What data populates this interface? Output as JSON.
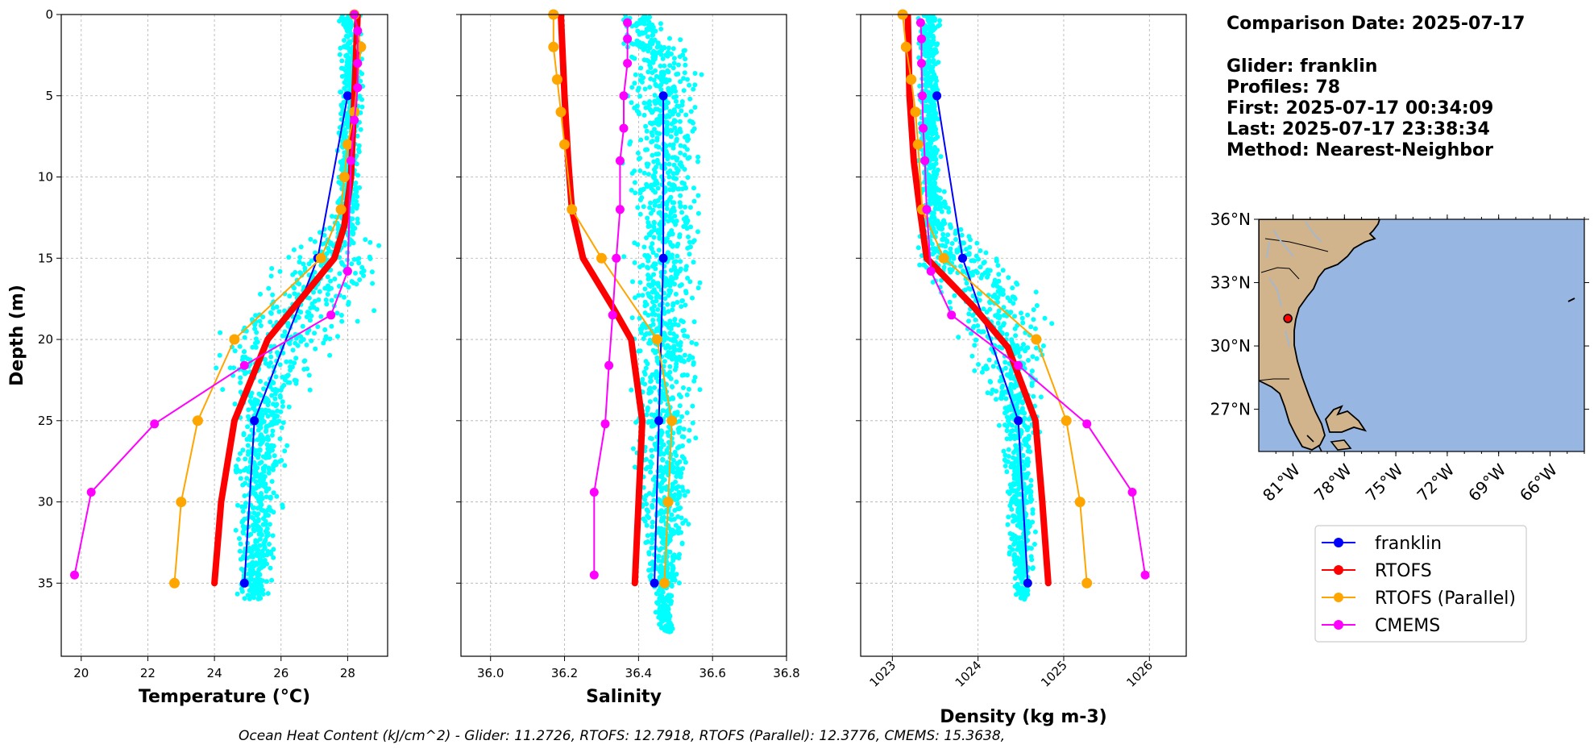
{
  "info": {
    "comparison_date": "Comparison Date: 2025-07-17",
    "glider": "Glider: franklin",
    "profiles": "Profiles: 78",
    "first": "First: 2025-07-17 00:34:09",
    "last": "Last: 2025-07-17 23:38:34",
    "method": "Method: Nearest-Neighbor"
  },
  "footer": "Ocean Heat Content (kJ/cm^2) - Glider: 11.2726,  RTOFS: 12.7918,  RTOFS (Parallel): 12.3776,  CMEMS: 15.3638,",
  "colors": {
    "franklin": "#0000ff",
    "rtofs": "#ff0000",
    "rtofs_parallel": "#ffa500",
    "cmems": "#ff00ff",
    "glider_scatter": "#00ffff",
    "land": "#d2b48c",
    "ocean": "#97b6e1"
  },
  "chart_data": [
    {
      "type": "line",
      "xlabel": "Temperature (°C)",
      "ylabel": "Depth (m)",
      "xlim": [
        19.4,
        29.2
      ],
      "ylim": [
        39.5,
        0
      ],
      "xticks": [
        20,
        22,
        24,
        26,
        28
      ],
      "yticks": [
        0,
        5,
        10,
        15,
        20,
        25,
        30,
        35
      ],
      "grid": true,
      "scatter": {
        "name": "franklin profiles",
        "x_center": [
          28.1,
          28.1,
          28.0,
          27.9,
          27.6,
          27.0,
          26.3,
          25.6,
          25.4,
          25.3,
          25.2
        ],
        "depth": [
          0,
          5,
          10,
          13,
          15,
          17,
          19,
          22,
          25,
          30,
          36
        ],
        "spread": [
          0.3,
          0.3,
          0.3,
          0.5,
          1.6,
          1.8,
          1.8,
          1.4,
          0.7,
          0.7,
          0.4
        ]
      },
      "series": [
        {
          "name": "franklin",
          "x": [
            28.0,
            27.1,
            25.2,
            24.9
          ],
          "depth": [
            5,
            15,
            25,
            35
          ]
        },
        {
          "name": "RTOFS",
          "x": [
            28.3,
            28.2,
            28.1,
            27.9,
            27.6,
            25.6,
            24.6,
            24.2,
            24.0
          ],
          "depth": [
            0,
            5,
            10,
            13,
            15,
            20,
            25,
            30,
            35
          ]
        },
        {
          "name": "RTOFS (Parallel)",
          "x": [
            28.2,
            28.4,
            28.2,
            28.0,
            27.9,
            27.8,
            27.2,
            24.6,
            23.5,
            23.0,
            22.8
          ],
          "depth": [
            0,
            2,
            6,
            8,
            10,
            12,
            15,
            20,
            25,
            30,
            35
          ]
        },
        {
          "name": "CMEMS",
          "x": [
            28.2,
            28.3,
            28.3,
            28.3,
            28.2,
            28.1,
            28.0,
            27.5,
            24.9,
            22.2,
            20.3,
            19.8
          ],
          "depth": [
            0,
            1,
            3,
            4.5,
            6.5,
            9,
            15.8,
            18.5,
            21.6,
            25.2,
            29.4,
            34.5
          ]
        }
      ]
    },
    {
      "type": "line",
      "xlabel": "Salinity",
      "xlim": [
        35.92,
        36.8
      ],
      "ylim": [
        39.5,
        0
      ],
      "xticks": [
        36.0,
        36.2,
        36.4,
        36.6,
        36.8
      ],
      "yticks": [
        0,
        5,
        10,
        15,
        20,
        25,
        30,
        35
      ],
      "grid": true,
      "scatter": {
        "name": "franklin profiles",
        "x_center": [
          36.4,
          36.47,
          36.47,
          36.47,
          36.47,
          36.47,
          36.47,
          36.47,
          36.47,
          36.47,
          36.48
        ],
        "depth": [
          0,
          3,
          5,
          10,
          15,
          20,
          25,
          30,
          33,
          36,
          38
        ],
        "spread": [
          0.05,
          0.1,
          0.1,
          0.1,
          0.09,
          0.08,
          0.08,
          0.07,
          0.05,
          0.03,
          0.02
        ]
      },
      "series": [
        {
          "name": "franklin",
          "x": [
            36.467,
            36.467,
            36.455,
            36.443
          ],
          "depth": [
            5,
            15,
            25,
            35
          ]
        },
        {
          "name": "RTOFS",
          "x": [
            36.19,
            36.2,
            36.21,
            36.22,
            36.25,
            36.33,
            36.38,
            36.41,
            36.4,
            36.39
          ],
          "depth": [
            0,
            5,
            9,
            12,
            15,
            18,
            20,
            25,
            30,
            35
          ]
        },
        {
          "name": "RTOFS (Parallel)",
          "x": [
            36.17,
            36.17,
            36.18,
            36.19,
            36.2,
            36.22,
            36.3,
            36.45,
            36.49,
            36.48,
            36.47
          ],
          "depth": [
            0,
            2,
            4,
            6,
            8,
            12,
            15,
            20,
            25,
            30,
            35
          ]
        },
        {
          "name": "CMEMS",
          "x": [
            36.37,
            36.37,
            36.37,
            36.36,
            36.36,
            36.35,
            36.35,
            36.34,
            36.33,
            36.32,
            36.31,
            36.28,
            36.28
          ],
          "depth": [
            0.5,
            1.5,
            3,
            5,
            7,
            9,
            12,
            15,
            18.5,
            21.6,
            25.2,
            29.4,
            34.5
          ]
        }
      ]
    },
    {
      "type": "line",
      "xlabel": "Density (kg m-3)",
      "xlim": [
        1022.63,
        1026.43
      ],
      "ylim": [
        39.5,
        0
      ],
      "xticks": [
        1023,
        1024,
        1025,
        1026
      ],
      "yticks": [
        0,
        5,
        10,
        15,
        20,
        25,
        30,
        35
      ],
      "grid": true,
      "scatter": {
        "name": "franklin profiles",
        "x_center": [
          1023.42,
          1023.42,
          1023.45,
          1023.5,
          1023.8,
          1024.05,
          1024.25,
          1024.38,
          1024.47,
          1024.5,
          1024.52
        ],
        "depth": [
          0,
          5,
          10,
          13,
          15,
          17,
          19,
          22,
          25,
          30,
          36
        ],
        "spread": [
          0.12,
          0.12,
          0.12,
          0.2,
          0.55,
          0.6,
          0.55,
          0.4,
          0.2,
          0.15,
          0.1
        ]
      },
      "series": [
        {
          "name": "franklin",
          "x": [
            1023.52,
            1023.82,
            1024.47,
            1024.58
          ],
          "depth": [
            5,
            15,
            25,
            35
          ]
        },
        {
          "name": "RTOFS",
          "x": [
            1023.18,
            1023.2,
            1023.25,
            1023.32,
            1023.4,
            1023.95,
            1024.35,
            1024.67,
            1024.75,
            1024.82
          ],
          "depth": [
            0,
            5,
            9,
            12,
            15,
            18,
            20.5,
            25,
            30,
            35
          ]
        },
        {
          "name": "RTOFS (Parallel)",
          "x": [
            1023.12,
            1023.16,
            1023.22,
            1023.27,
            1023.3,
            1023.35,
            1023.6,
            1024.68,
            1025.03,
            1025.19,
            1025.27
          ],
          "depth": [
            0,
            2,
            4,
            6,
            8,
            12,
            15,
            20,
            25,
            30,
            35
          ]
        },
        {
          "name": "CMEMS",
          "x": [
            1023.33,
            1023.34,
            1023.34,
            1023.35,
            1023.36,
            1023.38,
            1023.4,
            1023.45,
            1023.69,
            1024.47,
            1025.27,
            1025.8,
            1025.95
          ],
          "depth": [
            0.5,
            1.5,
            3,
            5,
            7,
            9,
            12,
            15.8,
            18.5,
            21.6,
            25.2,
            29.4,
            34.5
          ]
        }
      ]
    }
  ],
  "map": {
    "lon_range": [
      -83,
      -64
    ],
    "lat_range": [
      25,
      36
    ],
    "lon_ticks": [
      -81,
      -78,
      -75,
      -72,
      -69,
      -66
    ],
    "lon_labels": [
      "81°W",
      "78°W",
      "75°W",
      "72°W",
      "69°W",
      "66°W"
    ],
    "lat_ticks": [
      36,
      33,
      30,
      27
    ],
    "lat_labels": [
      "36°N",
      "33°N",
      "30°N",
      "27°N"
    ],
    "glider_position": {
      "lon": -81.3,
      "lat": 31.3
    }
  },
  "legend": [
    "franklin",
    "RTOFS",
    "RTOFS (Parallel)",
    "CMEMS"
  ]
}
